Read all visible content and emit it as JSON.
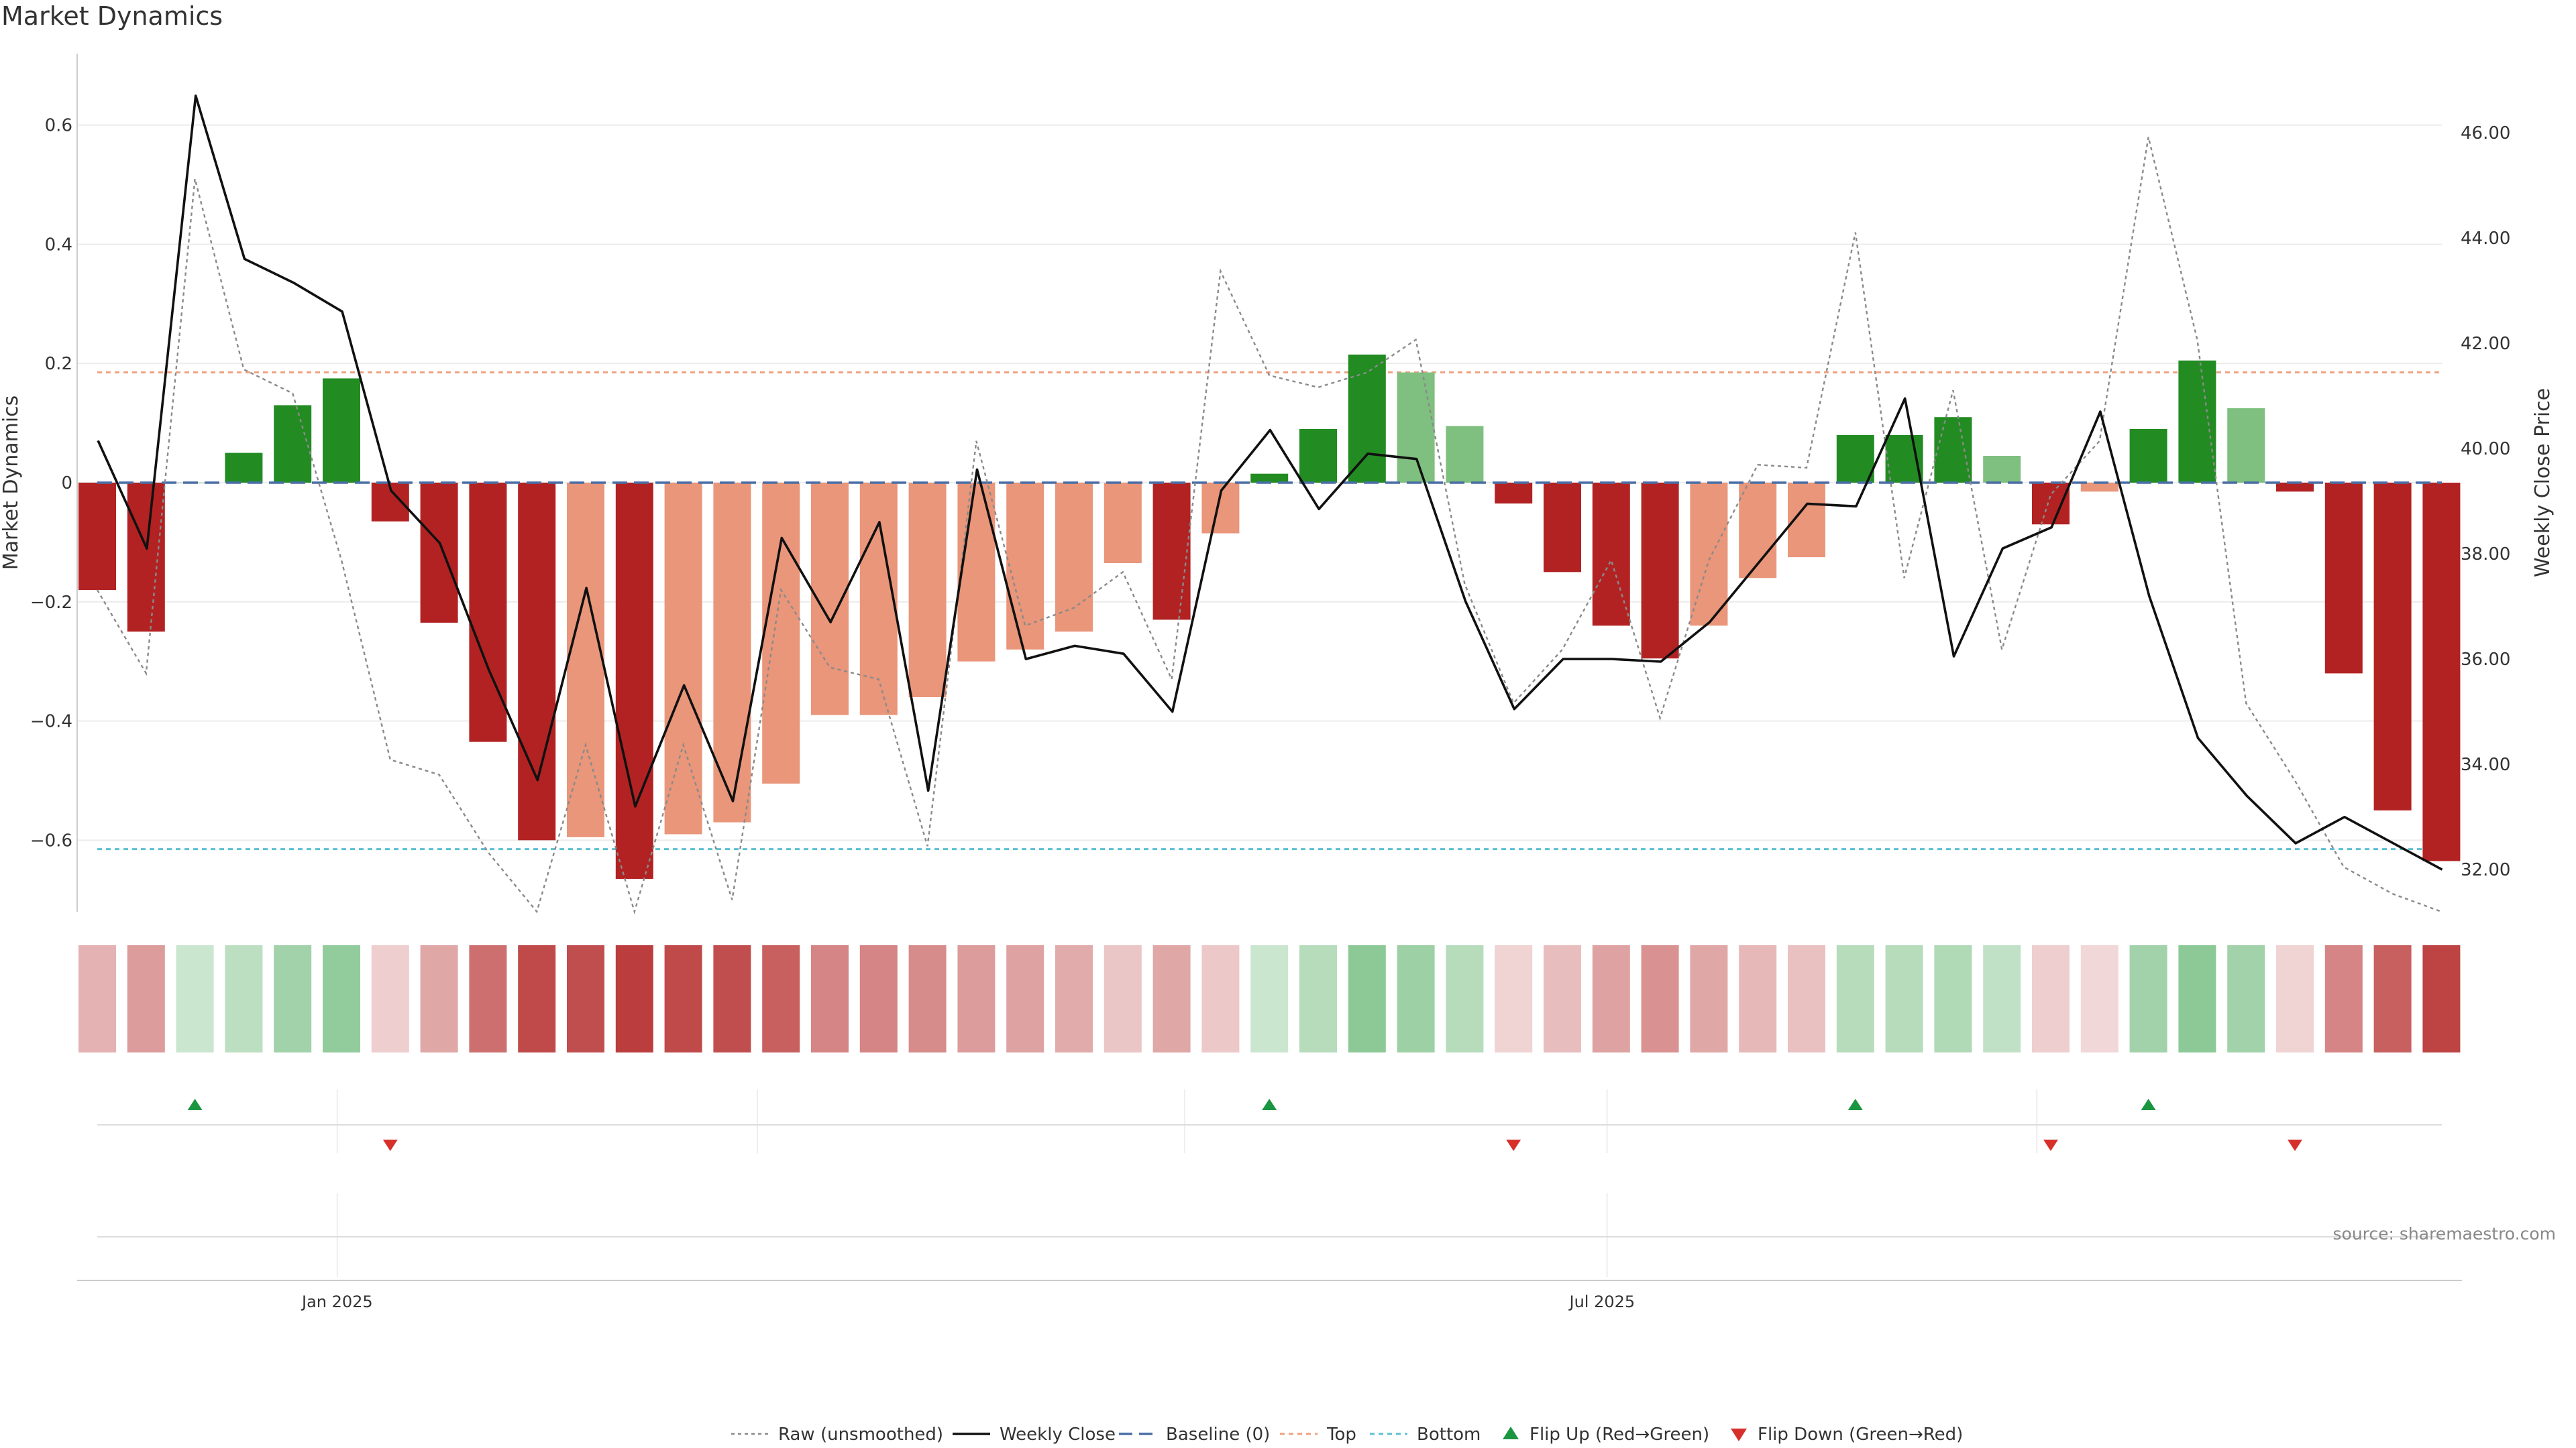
{
  "chart_data": {
    "title": "Market Dynamics",
    "source": "source: sharemaestro.com",
    "type": "bar",
    "ylabel_left": "Market Dynamics",
    "ylabel_right": "Weekly Close Price",
    "ylim_left": [
      -0.72,
      0.72
    ],
    "ylim_right": [
      31.2,
      47.5
    ],
    "yticks_left": [
      {
        "value": 0.6,
        "label": "0.6"
      },
      {
        "value": 0.4,
        "label": "0.4"
      },
      {
        "value": 0.2,
        "label": "0.2"
      },
      {
        "value": 0,
        "label": "0"
      },
      {
        "value": -0.2,
        "label": "−0.2"
      },
      {
        "value": -0.4,
        "label": "−0.4"
      },
      {
        "value": -0.6,
        "label": "−0.6"
      }
    ],
    "yticks_right": [
      {
        "value": 46,
        "label": "46.00"
      },
      {
        "value": 44,
        "label": "44.00"
      },
      {
        "value": 42,
        "label": "42.00"
      },
      {
        "value": 40,
        "label": "40.00"
      },
      {
        "value": 38,
        "label": "38.00"
      },
      {
        "value": 36,
        "label": "36.00"
      },
      {
        "value": 34,
        "label": "34.00"
      },
      {
        "value": 32,
        "label": "32.00"
      }
    ],
    "xticks": [
      {
        "index": 5.3,
        "label": "Jan 2025"
      },
      {
        "index": 31.2,
        "label": "Jul 2025"
      }
    ],
    "top_threshold": 0.185,
    "bottom_threshold": -0.615,
    "bars": [
      -0.18,
      -0.25,
      0.0,
      0.05,
      0.13,
      0.175,
      -0.065,
      -0.235,
      -0.435,
      -0.6,
      -0.595,
      -0.665,
      -0.59,
      -0.57,
      -0.505,
      -0.39,
      -0.39,
      -0.36,
      -0.3,
      -0.28,
      -0.25,
      -0.135,
      -0.23,
      -0.085,
      0.015,
      0.09,
      0.215,
      0.185,
      0.095,
      -0.035,
      -0.15,
      -0.24,
      -0.295,
      -0.24,
      -0.16,
      -0.125,
      0.08,
      0.08,
      0.11,
      0.045,
      -0.07,
      -0.015,
      0.09,
      0.205,
      0.125,
      -0.015,
      -0.32,
      -0.55,
      -0.635
    ],
    "bar_states": [
      "red",
      "red",
      "green",
      "green",
      "green",
      "green",
      "red",
      "red",
      "red",
      "red",
      "lightred",
      "red",
      "lightred",
      "lightred",
      "lightred",
      "lightred",
      "lightred",
      "lightred",
      "lightred",
      "lightred",
      "lightred",
      "lightred",
      "red",
      "lightred",
      "green",
      "green",
      "green",
      "lightgreen",
      "lightgreen",
      "red",
      "red",
      "red",
      "red",
      "lightred",
      "lightred",
      "lightred",
      "green",
      "green",
      "green",
      "lightgreen",
      "red",
      "lightred",
      "green",
      "green",
      "lightgreen",
      "red",
      "red",
      "red",
      "red"
    ],
    "raw": [
      -0.18,
      -0.32,
      0.51,
      0.19,
      0.15,
      -0.13,
      -0.465,
      -0.49,
      -0.62,
      -0.74,
      -0.44,
      -0.745,
      -0.44,
      -0.7,
      -0.18,
      -0.31,
      -0.33,
      -0.61,
      0.07,
      -0.24,
      -0.21,
      -0.15,
      -0.33,
      0.355,
      0.18,
      0.16,
      0.185,
      0.24,
      -0.17,
      -0.37,
      -0.28,
      -0.13,
      -0.395,
      -0.13,
      0.03,
      0.025,
      0.42,
      -0.16,
      0.155,
      -0.28,
      -0.02,
      0.07,
      0.58,
      0.24,
      -0.37,
      -0.5,
      -0.645,
      -0.69,
      -0.72
    ],
    "weekly_close": [
      40.15,
      38.1,
      46.7,
      43.6,
      43.15,
      42.6,
      39.2,
      38.2,
      35.8,
      33.7,
      37.35,
      33.2,
      35.5,
      33.3,
      38.3,
      36.7,
      38.6,
      33.5,
      39.6,
      36.0,
      36.25,
      36.1,
      35.0,
      39.2,
      40.35,
      38.85,
      39.9,
      39.8,
      37.1,
      35.05,
      36.0,
      36.0,
      35.95,
      36.7,
      38.95,
      38.9,
      40.95,
      36.05,
      38.1,
      38.5,
      40.7,
      37.2,
      34.5,
      33.4,
      32.5,
      33.0,
      32.0
    ],
    "weekly_close_x": [
      0.4,
      1.4,
      2.4,
      3.4,
      4.4,
      5.4,
      6.4,
      7.4,
      8.4,
      9.4,
      10.4,
      11.4,
      12.4,
      13.4,
      14.4,
      15.4,
      16.4,
      17.4,
      18.4,
      19.4,
      20.4,
      21.4,
      22.4,
      23.4,
      24.4,
      25.4,
      26.4,
      27.4,
      28.4,
      29.4,
      30.4,
      31.4,
      32.4,
      33.4,
      35.4,
      36.4,
      37.4,
      38.4,
      39.4,
      40.4,
      41.4,
      42.4,
      43.4,
      44.4,
      45.4,
      46.4,
      48.4
    ],
    "heat_intensity": [
      0.35,
      0.45,
      0.25,
      0.32,
      0.45,
      0.52,
      0.22,
      0.4,
      0.65,
      0.82,
      0.8,
      0.88,
      0.82,
      0.8,
      0.72,
      0.55,
      0.55,
      0.52,
      0.45,
      0.42,
      0.38,
      0.26,
      0.4,
      0.25,
      0.25,
      0.35,
      0.55,
      0.47,
      0.35,
      0.2,
      0.3,
      0.42,
      0.5,
      0.4,
      0.32,
      0.28,
      0.35,
      0.35,
      0.38,
      0.3,
      0.22,
      0.18,
      0.45,
      0.55,
      0.45,
      0.2,
      0.55,
      0.72,
      0.85
    ],
    "flip_up_indices": [
      2,
      24,
      36,
      42
    ],
    "flip_down_indices": [
      6,
      29,
      40,
      45
    ],
    "legend": [
      {
        "label": "Raw (unsmoothed)",
        "style": "raw"
      },
      {
        "label": "Weekly Close",
        "style": "close"
      },
      {
        "label": "Baseline (0)",
        "style": "baseline"
      },
      {
        "label": "Top",
        "style": "top"
      },
      {
        "label": "Bottom",
        "style": "bottom"
      },
      {
        "label": "Flip Up (Red→Green)",
        "style": "flipup"
      },
      {
        "label": "Flip Down (Green→Red)",
        "style": "flipdown"
      }
    ],
    "colors": {
      "red": "#b22222",
      "lightred": "#e9967a",
      "green": "#228b22",
      "lightgreen": "#7fbf7f",
      "close_line": "#111111",
      "raw_line": "#8a8a8a",
      "baseline": "#4a6fa5",
      "top": "#f0a080",
      "bottom": "#5bc0d0",
      "flip_up": "#1a9641",
      "flip_down": "#d7302b",
      "heat_green": "#2e9c40",
      "heat_red": "#b22222"
    }
  }
}
